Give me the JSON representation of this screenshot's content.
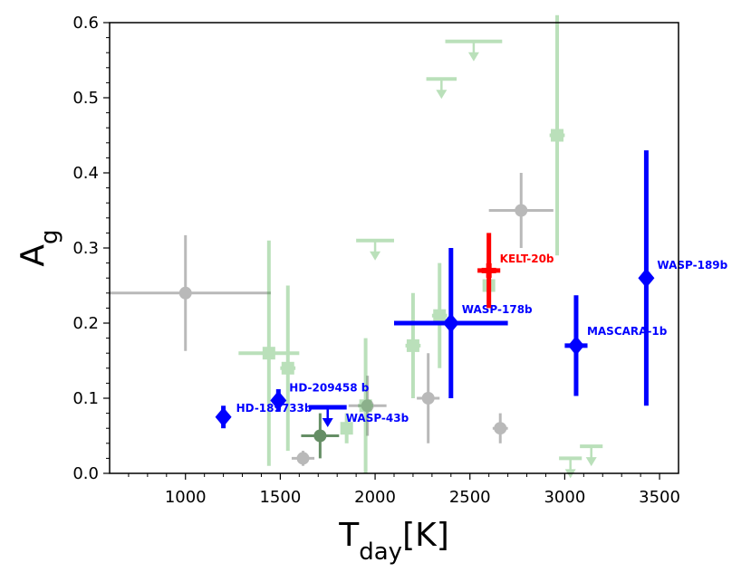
{
  "chart_data": {
    "type": "scatter",
    "title": "",
    "xlabel": "T",
    "xlabel_sub": "day",
    "xlabel_unit": "[K]",
    "ylabel": "A",
    "ylabel_sub": "g",
    "xlim": [
      600,
      3600
    ],
    "ylim": [
      0.0,
      0.6
    ],
    "xticks": [
      1000,
      1500,
      2000,
      2500,
      3000,
      3500
    ],
    "yticks": [
      0.0,
      0.1,
      0.2,
      0.3,
      0.4,
      0.5,
      0.6
    ],
    "xtick_labels": [
      "1000",
      "1500",
      "2000",
      "2500",
      "3000",
      "3500"
    ],
    "ytick_labels": [
      "0.0",
      "0.1",
      "0.2",
      "0.3",
      "0.4",
      "0.5",
      "0.6"
    ],
    "grid": false,
    "colors": {
      "grey": "#808080",
      "green": "#2ca02c",
      "darkgreen": "#145214",
      "blue": "#0000ff",
      "red": "#ff0000"
    },
    "series": [
      {
        "group": "grey",
        "points": [
          {
            "x": 1000,
            "y": 0.24,
            "xerr": [
              400,
              450
            ],
            "yerr": [
              0.077,
              0.077
            ]
          },
          {
            "x": 1620,
            "y": 0.02,
            "xerr": [
              60,
              60
            ],
            "yerr": [
              0.01,
              0.01
            ]
          },
          {
            "x": 1960,
            "y": 0.09,
            "xerr": [
              100,
              100
            ],
            "yerr": [
              0.04,
              0.04
            ]
          },
          {
            "x": 2280,
            "y": 0.1,
            "xerr": [
              60,
              60
            ],
            "yerr": [
              0.06,
              0.06
            ]
          },
          {
            "x": 2660,
            "y": 0.06,
            "xerr": [
              40,
              40
            ],
            "yerr": [
              0.02,
              0.02
            ]
          },
          {
            "x": 2770,
            "y": 0.35,
            "xerr": [
              170,
              170
            ],
            "yerr": [
              0.05,
              0.05
            ]
          }
        ]
      },
      {
        "group": "green",
        "points": [
          {
            "x": 1440,
            "y": 0.16,
            "xerr": [
              160,
              160
            ],
            "yerr": [
              0.15,
              0.15
            ]
          },
          {
            "x": 1540,
            "y": 0.14,
            "xerr": [
              40,
              40
            ],
            "yerr": [
              0.11,
              0.11
            ]
          },
          {
            "x": 1850,
            "y": 0.06,
            "xerr": [
              20,
              20
            ],
            "yerr": [
              0.02,
              0.02
            ]
          },
          {
            "x": 1950,
            "y": 0.09,
            "xerr": [
              40,
              40
            ],
            "yerr": [
              0.09,
              0.09
            ]
          },
          {
            "x": 2200,
            "y": 0.17,
            "xerr": [
              40,
              40
            ],
            "yerr": [
              0.07,
              0.07
            ]
          },
          {
            "x": 2340,
            "y": 0.21,
            "xerr": [
              40,
              40
            ],
            "yerr": [
              0.07,
              0.07
            ]
          },
          {
            "x": 2600,
            "y": 0.25,
            "xerr": [
              20,
              20
            ],
            "yerr": [
              0.02,
              0.02
            ]
          },
          {
            "x": 2960,
            "y": 0.45,
            "xerr": [
              40,
              40
            ],
            "yerr": [
              0.16,
              0.16
            ]
          }
        ],
        "upper_limits": [
          {
            "x": 2000,
            "y": 0.31,
            "xerr": [
              100,
              100
            ]
          },
          {
            "x": 2350,
            "y": 0.525,
            "xerr": [
              80,
              80
            ]
          },
          {
            "x": 2520,
            "y": 0.575,
            "xerr": [
              150,
              150
            ]
          },
          {
            "x": 3030,
            "y": 0.02,
            "xerr": [
              60,
              60
            ]
          },
          {
            "x": 3140,
            "y": 0.036,
            "xerr": [
              60,
              60
            ]
          }
        ]
      },
      {
        "group": "darkgreen",
        "points": [
          {
            "x": 1710,
            "y": 0.05,
            "xerr": [
              100,
              100
            ],
            "yerr": [
              0.03,
              0.03
            ]
          }
        ]
      },
      {
        "group": "blue",
        "points": [
          {
            "x": 1200,
            "y": 0.075,
            "xerr": [
              30,
              30
            ],
            "yerr": [
              0.015,
              0.015
            ],
            "label": "HD-189733b"
          },
          {
            "x": 1490,
            "y": 0.097,
            "xerr": [
              30,
              30
            ],
            "yerr": [
              0.015,
              0.015
            ],
            "label": "HD-209458 b"
          },
          {
            "x": 2400,
            "y": 0.2,
            "xerr": [
              300,
              300
            ],
            "yerr": [
              0.1,
              0.1
            ],
            "label": "WASP-178b"
          },
          {
            "x": 3060,
            "y": 0.17,
            "xerr": [
              60,
              60
            ],
            "yerr": [
              0.067,
              0.067
            ],
            "label": "MASCARA-1b"
          },
          {
            "x": 3430,
            "y": 0.26,
            "xerr": [
              30,
              30
            ],
            "yerr": [
              0.17,
              0.17
            ],
            "label": "WASP-189b"
          }
        ],
        "upper_limits": [
          {
            "x": 1750,
            "y": 0.088,
            "xerr": [
              100,
              100
            ],
            "label": "WASP-43b"
          }
        ]
      },
      {
        "group": "red",
        "points": [
          {
            "x": 2600,
            "y": 0.27,
            "xerr": [
              60,
              60
            ],
            "yerr": [
              0.05,
              0.05
            ],
            "label": "KELT-20b"
          }
        ]
      }
    ]
  }
}
